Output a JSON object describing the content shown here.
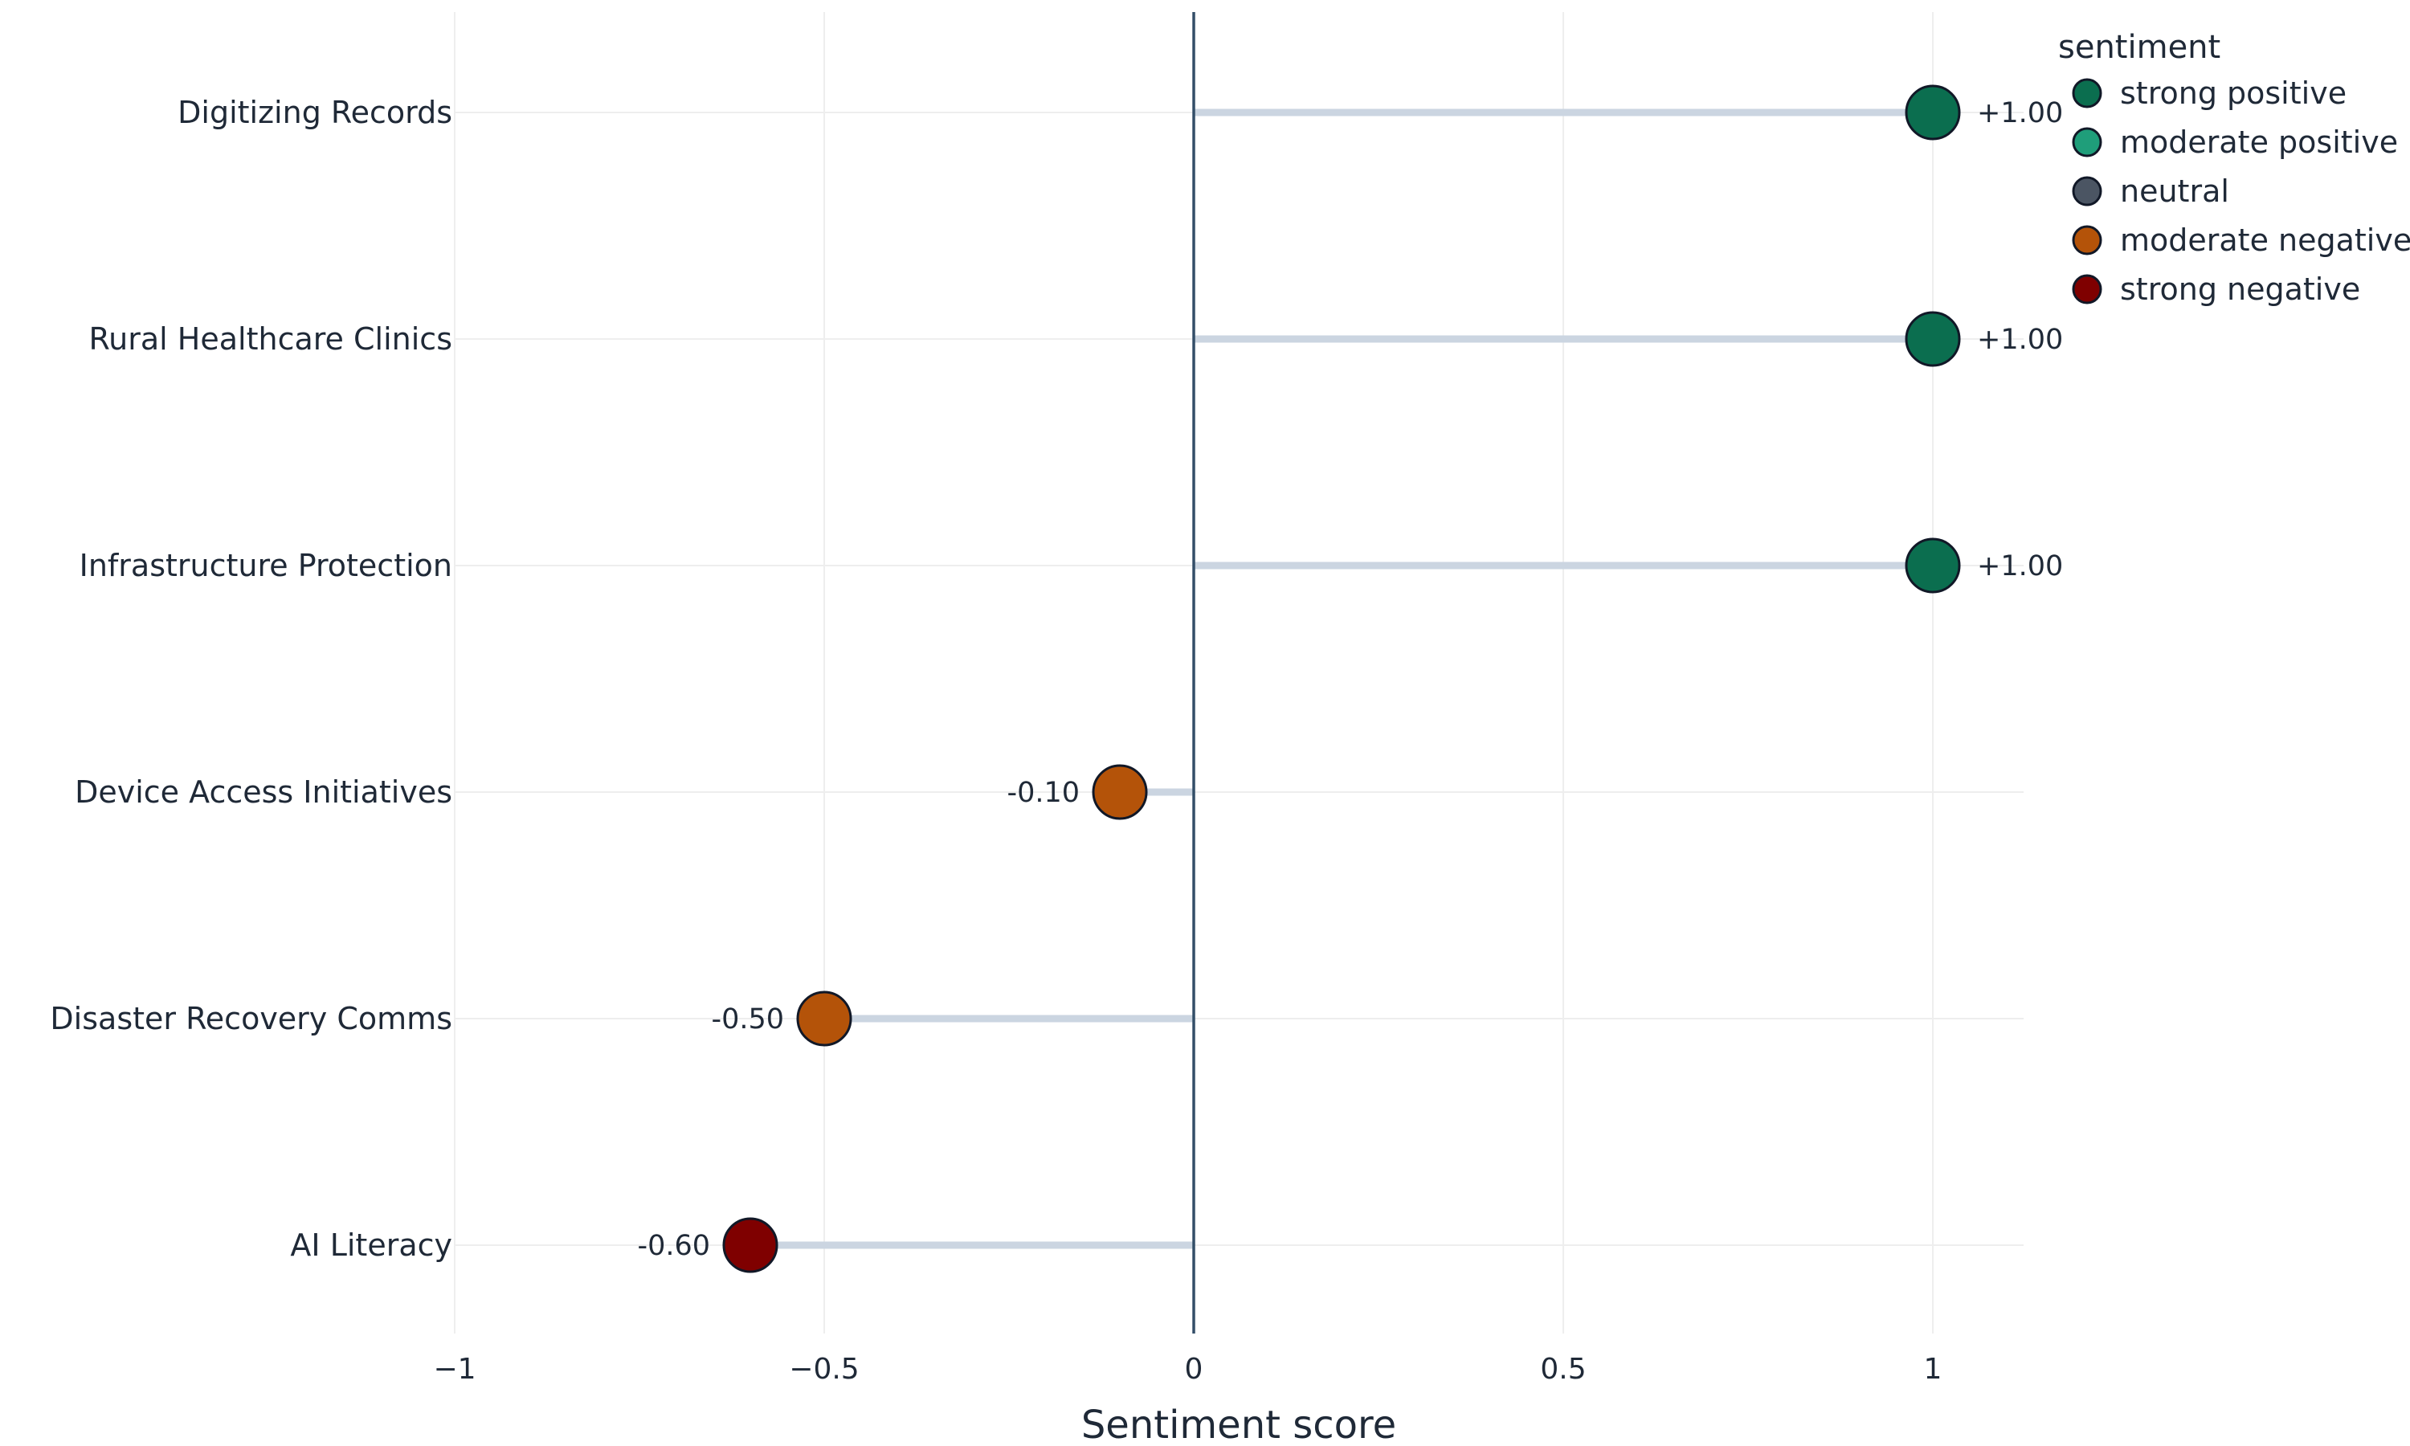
{
  "chart_data": {
    "type": "scatter",
    "subtype": "lollipop",
    "orientation": "horizontal",
    "title": "",
    "xlabel": "Sentiment score",
    "ylabel": "",
    "xlim": [
      -1,
      1.12
    ],
    "x_ticks": [
      -1,
      -0.5,
      0,
      0.5,
      1
    ],
    "x_tick_labels": [
      "−1",
      "−0.5",
      "0",
      "0.5",
      "1"
    ],
    "grid": true,
    "zero_line": true,
    "categories": [
      "Digitizing Records",
      "Rural Healthcare Clinics",
      "Infrastructure Protection",
      "Device Access Initiatives",
      "Disaster Recovery Comms",
      "AI Literacy"
    ],
    "values": [
      1.0,
      1.0,
      1.0,
      -0.1,
      -0.5,
      -0.6
    ],
    "value_labels": [
      "+1.00",
      "+1.00",
      "+1.00",
      "-0.10",
      "-0.50",
      "-0.60"
    ],
    "sentiment": [
      "strong positive",
      "strong positive",
      "strong positive",
      "moderate negative",
      "moderate negative",
      "strong negative"
    ],
    "legend": {
      "title": "sentiment",
      "placement": "top-right",
      "entries": [
        {
          "name": "strong positive",
          "color": "#0b6e4f"
        },
        {
          "name": "moderate positive",
          "color": "#1f9e7a"
        },
        {
          "name": "neutral",
          "color": "#4b5563"
        },
        {
          "name": "moderate negative",
          "color": "#b45309"
        },
        {
          "name": "strong negative",
          "color": "#7f0000"
        }
      ]
    },
    "colors": {
      "stem": "#cbd5e1",
      "zero_line": "#334e68",
      "grid": "#eeeeee",
      "marker_outline": "#111827"
    }
  }
}
